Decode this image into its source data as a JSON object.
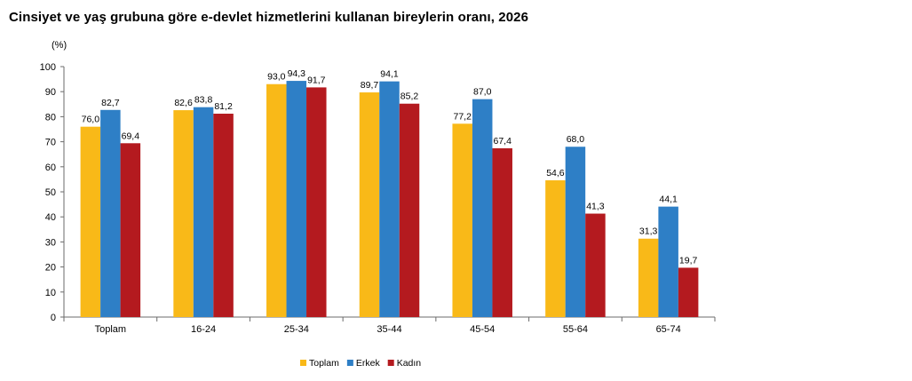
{
  "title": "Cinsiyet ve yaş grubuna göre e-devlet hizmetlerini kullanan bireylerin oranı, 2026",
  "chart_data": {
    "type": "bar",
    "title": "Cinsiyet ve yaş grubuna göre e-devlet hizmetlerini kullanan bireylerin oranı, 2026",
    "unit_label": "(%)",
    "categories": [
      "Toplam",
      "16-24",
      "25-34",
      "35-44",
      "45-54",
      "55-64",
      "65-74"
    ],
    "series": [
      {
        "name": "Toplam",
        "color": "#F9B918",
        "values": [
          76.0,
          82.6,
          93.0,
          89.7,
          77.2,
          54.6,
          31.3
        ],
        "labels": [
          "76,0",
          "82,6",
          "93,0",
          "89,7",
          "77,2",
          "54,6",
          "31,3"
        ]
      },
      {
        "name": "Erkek",
        "color": "#2E7FC6",
        "values": [
          82.7,
          83.8,
          94.3,
          94.1,
          87.0,
          68.0,
          44.1
        ],
        "labels": [
          "82,7",
          "83,8",
          "94,3",
          "94,1",
          "87,0",
          "68,0",
          "44,1"
        ]
      },
      {
        "name": "Kadın",
        "color": "#B41A1F",
        "values": [
          69.4,
          81.2,
          91.7,
          85.2,
          67.4,
          41.3,
          19.7
        ],
        "labels": [
          "69,4",
          "81,2",
          "91,7",
          "85,2",
          "67,4",
          "41,3",
          "19,7"
        ]
      }
    ],
    "ylim": [
      0,
      100
    ],
    "yticks": [
      "0",
      "10",
      "20",
      "30",
      "40",
      "50",
      "60",
      "70",
      "80",
      "90",
      "100"
    ],
    "grid": false,
    "legend_position": "bottom-center"
  }
}
